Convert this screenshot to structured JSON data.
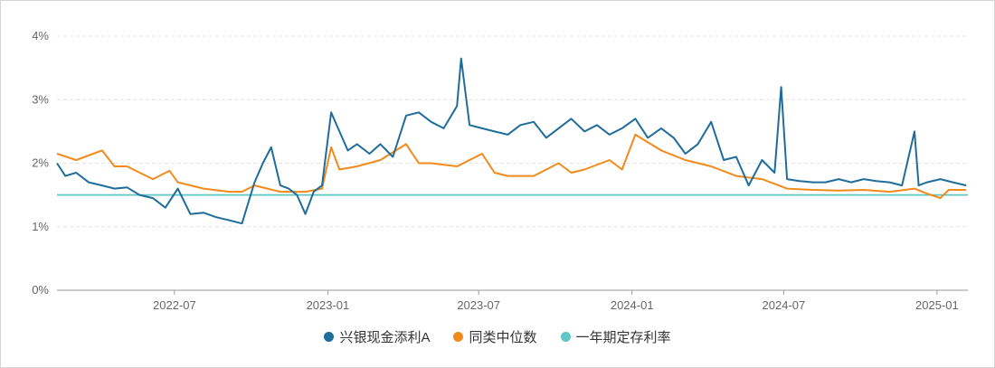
{
  "chart_data": {
    "type": "line",
    "title": "",
    "xlabel": "",
    "ylabel": "",
    "x_range": [
      "2022-02-10",
      "2025-02-07"
    ],
    "ylim": [
      0,
      4
    ],
    "y_ticks": [
      0,
      1,
      2,
      3,
      4
    ],
    "y_tick_labels": [
      "0%",
      "1%",
      "2%",
      "3%",
      "4%"
    ],
    "x_ticks": [
      "2022-07-01",
      "2023-01-01",
      "2023-07-01",
      "2024-01-01",
      "2024-07-01",
      "2025-01-01"
    ],
    "x_tick_labels": [
      "2022-07",
      "2023-01",
      "2023-07",
      "2024-01",
      "2024-07",
      "2025-01"
    ],
    "grid": "horizontal dashed",
    "legend": "bottom-center",
    "series": [
      {
        "name": "兴银现金添利A",
        "color": "#1f6d9b",
        "x": [
          "2022-02-10",
          "2022-02-20",
          "2022-03-05",
          "2022-03-20",
          "2022-04-05",
          "2022-04-20",
          "2022-05-05",
          "2022-05-20",
          "2022-06-05",
          "2022-06-20",
          "2022-07-05",
          "2022-07-20",
          "2022-08-05",
          "2022-08-20",
          "2022-09-05",
          "2022-09-20",
          "2022-10-05",
          "2022-10-15",
          "2022-10-25",
          "2022-11-05",
          "2022-11-15",
          "2022-11-25",
          "2022-12-05",
          "2022-12-15",
          "2022-12-25",
          "2023-01-05",
          "2023-01-15",
          "2023-01-25",
          "2023-02-05",
          "2023-02-20",
          "2023-03-05",
          "2023-03-20",
          "2023-04-05",
          "2023-04-20",
          "2023-05-05",
          "2023-05-20",
          "2023-06-05",
          "2023-06-10",
          "2023-06-20",
          "2023-07-05",
          "2023-07-20",
          "2023-08-05",
          "2023-08-20",
          "2023-09-05",
          "2023-09-20",
          "2023-10-05",
          "2023-10-20",
          "2023-11-05",
          "2023-11-20",
          "2023-12-05",
          "2023-12-20",
          "2024-01-05",
          "2024-01-20",
          "2024-02-05",
          "2024-02-20",
          "2024-03-05",
          "2024-03-20",
          "2024-04-05",
          "2024-04-20",
          "2024-05-05",
          "2024-05-20",
          "2024-06-05",
          "2024-06-20",
          "2024-06-28",
          "2024-07-05",
          "2024-07-20",
          "2024-08-05",
          "2024-08-20",
          "2024-09-05",
          "2024-09-20",
          "2024-10-05",
          "2024-10-20",
          "2024-11-05",
          "2024-11-20",
          "2024-12-05",
          "2024-12-10",
          "2024-12-20",
          "2025-01-05",
          "2025-01-20",
          "2025-02-05"
        ],
        "y": [
          2.0,
          1.8,
          1.85,
          1.7,
          1.65,
          1.6,
          1.62,
          1.5,
          1.45,
          1.3,
          1.6,
          1.2,
          1.22,
          1.15,
          1.1,
          1.05,
          1.7,
          2.0,
          2.25,
          1.65,
          1.6,
          1.5,
          1.2,
          1.55,
          1.65,
          2.8,
          2.5,
          2.2,
          2.3,
          2.15,
          2.3,
          2.1,
          2.75,
          2.8,
          2.65,
          2.55,
          2.9,
          3.65,
          2.6,
          2.55,
          2.5,
          2.45,
          2.6,
          2.65,
          2.4,
          2.55,
          2.7,
          2.5,
          2.6,
          2.45,
          2.55,
          2.7,
          2.4,
          2.55,
          2.4,
          2.15,
          2.3,
          2.65,
          2.05,
          2.1,
          1.65,
          2.05,
          1.85,
          3.2,
          1.75,
          1.72,
          1.7,
          1.7,
          1.75,
          1.7,
          1.75,
          1.72,
          1.7,
          1.65,
          2.5,
          1.65,
          1.7,
          1.75,
          1.7,
          1.65
        ]
      },
      {
        "name": "同类中位数",
        "color": "#f28a1b",
        "x": [
          "2022-02-10",
          "2022-03-05",
          "2022-04-05",
          "2022-04-20",
          "2022-05-05",
          "2022-06-05",
          "2022-06-25",
          "2022-07-05",
          "2022-08-05",
          "2022-09-05",
          "2022-09-20",
          "2022-10-05",
          "2022-11-05",
          "2022-12-05",
          "2022-12-25",
          "2023-01-05",
          "2023-01-15",
          "2023-02-05",
          "2023-03-05",
          "2023-04-05",
          "2023-04-20",
          "2023-05-05",
          "2023-06-05",
          "2023-07-05",
          "2023-07-20",
          "2023-08-05",
          "2023-09-05",
          "2023-10-05",
          "2023-10-20",
          "2023-11-05",
          "2023-12-05",
          "2023-12-20",
          "2024-01-05",
          "2024-02-05",
          "2024-03-05",
          "2024-04-05",
          "2024-05-05",
          "2024-06-05",
          "2024-07-05",
          "2024-08-05",
          "2024-09-05",
          "2024-10-05",
          "2024-11-05",
          "2024-12-05",
          "2024-12-20",
          "2025-01-05",
          "2025-01-15",
          "2025-02-05"
        ],
        "y": [
          2.15,
          2.05,
          2.2,
          1.95,
          1.95,
          1.75,
          1.88,
          1.7,
          1.6,
          1.55,
          1.55,
          1.65,
          1.55,
          1.55,
          1.6,
          2.25,
          1.9,
          1.95,
          2.05,
          2.3,
          2.0,
          2.0,
          1.95,
          2.15,
          1.85,
          1.8,
          1.8,
          2.0,
          1.85,
          1.9,
          2.05,
          1.9,
          2.45,
          2.2,
          2.05,
          1.95,
          1.8,
          1.75,
          1.6,
          1.58,
          1.57,
          1.58,
          1.55,
          1.6,
          1.52,
          1.45,
          1.58,
          1.58
        ]
      },
      {
        "name": "一年期定存利率",
        "color": "#5ec6c3",
        "x": [
          "2022-02-10",
          "2025-02-07"
        ],
        "y": [
          1.5,
          1.5
        ]
      }
    ]
  }
}
